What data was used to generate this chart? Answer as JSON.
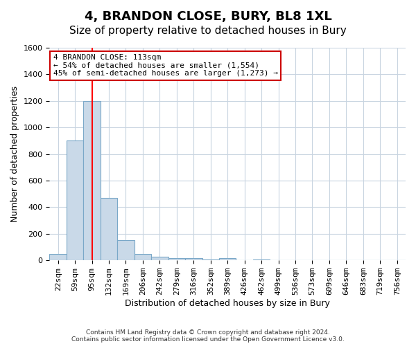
{
  "title": "4, BRANDON CLOSE, BURY, BL8 1XL",
  "subtitle": "Size of property relative to detached houses in Bury",
  "xlabel": "Distribution of detached houses by size in Bury",
  "ylabel": "Number of detached properties",
  "bin_labels": [
    "22sqm",
    "59sqm",
    "95sqm",
    "132sqm",
    "169sqm",
    "206sqm",
    "242sqm",
    "279sqm",
    "316sqm",
    "352sqm",
    "389sqm",
    "426sqm",
    "462sqm",
    "499sqm",
    "536sqm",
    "573sqm",
    "609sqm",
    "646sqm",
    "683sqm",
    "719sqm",
    "756sqm"
  ],
  "bar_values": [
    50,
    900,
    1200,
    470,
    150,
    50,
    25,
    15,
    15,
    5,
    15,
    0,
    5,
    0,
    0,
    0,
    0,
    0,
    0,
    0,
    0
  ],
  "bar_color": "#c9d9e8",
  "bar_edgecolor": "#7aa8c8",
  "red_line_x": 2,
  "red_line_label": "4 BRANDON CLOSE: 113sqm",
  "annotation_line1": "← 54% of detached houses are smaller (1,554)",
  "annotation_line2": "45% of semi-detached houses are larger (1,273) →",
  "ylim": [
    0,
    1600
  ],
  "yticks": [
    0,
    200,
    400,
    600,
    800,
    1000,
    1200,
    1400,
    1600
  ],
  "grid_color": "#c8d4e0",
  "background_color": "#ffffff",
  "footnote": "Contains HM Land Registry data © Crown copyright and database right 2024.\nContains public sector information licensed under the Open Government Licence v3.0.",
  "title_fontsize": 13,
  "subtitle_fontsize": 11,
  "axis_label_fontsize": 9,
  "tick_fontsize": 8,
  "annotation_box_color": "#ffffff",
  "annotation_box_edgecolor": "#cc0000"
}
